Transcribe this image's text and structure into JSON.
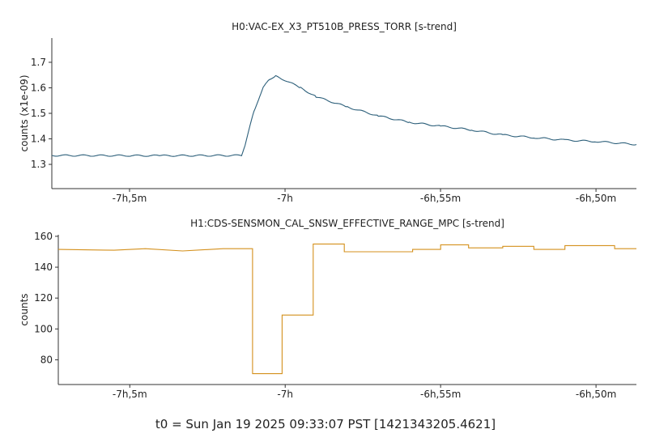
{
  "footer": "t0 = Sun Jan 19 2025 09:33:07 PST [1421343205.4621]",
  "chart_data": [
    {
      "type": "line",
      "title": "H0:VAC-EX_X3_PT510B_PRESS_TORR [s-trend]",
      "ylabel": "counts (x1e-09)",
      "xlabel": "",
      "grid": false,
      "legend": "none",
      "color": "#2c5f7a",
      "xlim": [
        -7.5,
        11.3
      ],
      "ylim": [
        1.205,
        1.795
      ],
      "yticks": [
        1.3,
        1.4,
        1.5,
        1.6,
        1.7
      ],
      "ytick_labels": [
        "1.3",
        "1.4",
        "1.5",
        "1.6",
        "1.7"
      ],
      "xticks": [
        -5,
        0,
        5,
        10
      ],
      "xtick_labels": [
        "-7h,5m",
        "-7h",
        "-6h,55m",
        "-6h,50m"
      ],
      "x": [
        -7.5,
        -4,
        -1.4,
        -1.25,
        -1.0,
        -0.7,
        -0.5,
        -0.3,
        0,
        0.5,
        1,
        2,
        3,
        4,
        5,
        6,
        7,
        8,
        9,
        10,
        11.3
      ],
      "y": [
        1.335,
        1.334,
        1.335,
        1.39,
        1.51,
        1.6,
        1.635,
        1.645,
        1.63,
        1.6,
        1.565,
        1.525,
        1.49,
        1.465,
        1.45,
        1.435,
        1.415,
        1.405,
        1.395,
        1.39,
        1.378
      ]
    },
    {
      "type": "line",
      "title": "H1:CDS-SENSMON_CAL_SNSW_EFFECTIVE_RANGE_MPC [s-trend]",
      "ylabel": "counts",
      "xlabel": "",
      "grid": false,
      "legend": "none",
      "color": "#d4901c",
      "step": true,
      "xlim": [
        -7.3,
        11.3
      ],
      "ylim": [
        64,
        161
      ],
      "yticks": [
        80,
        100,
        120,
        140,
        160
      ],
      "ytick_labels": [
        "80",
        "100",
        "120",
        "140",
        "160"
      ],
      "xticks": [
        -5,
        0,
        5,
        10
      ],
      "xtick_labels": [
        "-7h,5m",
        "-7h",
        "-6h,55m",
        "-6h,50m"
      ],
      "x": [
        -7.3,
        -5.5,
        -4.5,
        -3.3,
        -2.0,
        -1.05,
        -1.05,
        -0.1,
        -0.1,
        0.9,
        0.9,
        1.9,
        1.9,
        4.1,
        4.1,
        5.0,
        5.0,
        5.9,
        5.9,
        7.0,
        7.0,
        8.0,
        8.0,
        9.0,
        9.0,
        10.6,
        10.6,
        11.3
      ],
      "y": [
        151.5,
        151.0,
        152.0,
        150.5,
        152.0,
        152.0,
        71.0,
        71.0,
        109.0,
        109.0,
        155.0,
        155.0,
        150.0,
        150.0,
        151.5,
        151.5,
        154.5,
        154.5,
        152.5,
        152.5,
        153.5,
        153.5,
        151.5,
        151.5,
        154.0,
        154.0,
        152.0,
        152.0
      ]
    }
  ]
}
